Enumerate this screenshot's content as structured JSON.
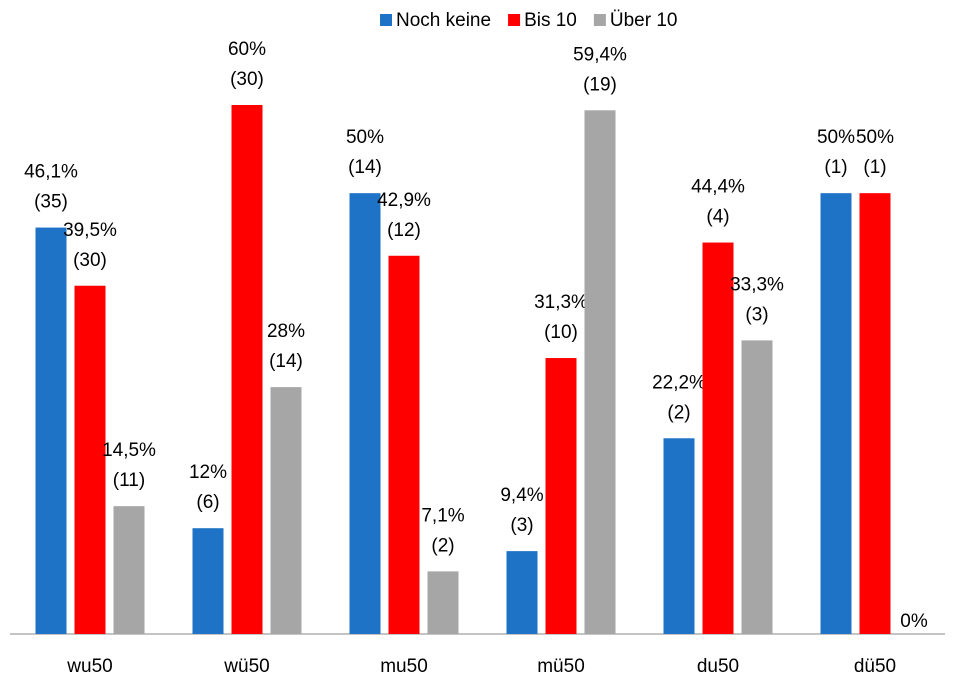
{
  "chart_data": {
    "type": "bar",
    "categories": [
      "wu50",
      "wü50",
      "mu50",
      "mü50",
      "du50",
      "dü50"
    ],
    "series": [
      {
        "name": "Noch keine",
        "color": "#1f73c7",
        "values": [
          46.1,
          12,
          50,
          9.4,
          22.2,
          50
        ],
        "value_labels": [
          "46,1%",
          "12%",
          "50%",
          "9,4%",
          "22,2%",
          "50%"
        ],
        "count_labels": [
          "(35)",
          "(6)",
          "(14)",
          "(3)",
          "(2)",
          "(1)"
        ]
      },
      {
        "name": "Bis 10",
        "color": "#ff0000",
        "values": [
          39.5,
          60,
          42.9,
          31.3,
          44.4,
          50
        ],
        "value_labels": [
          "39,5%",
          "60%",
          "42,9%",
          "31,3%",
          "44,4%",
          "50%"
        ],
        "count_labels": [
          "(30)",
          "(30)",
          "(12)",
          "(10)",
          "(4)",
          "(1)"
        ]
      },
      {
        "name": "Über 10",
        "color": "#a6a6a6",
        "values": [
          14.5,
          28,
          7.1,
          59.4,
          33.3,
          0
        ],
        "value_labels": [
          "14,5%",
          "28%",
          "7,1%",
          "59,4%",
          "33,3%",
          "0%"
        ],
        "count_labels": [
          "(11)",
          "(14)",
          "(2)",
          "(19)",
          "(3)",
          null
        ]
      }
    ],
    "legend": "top"
  }
}
